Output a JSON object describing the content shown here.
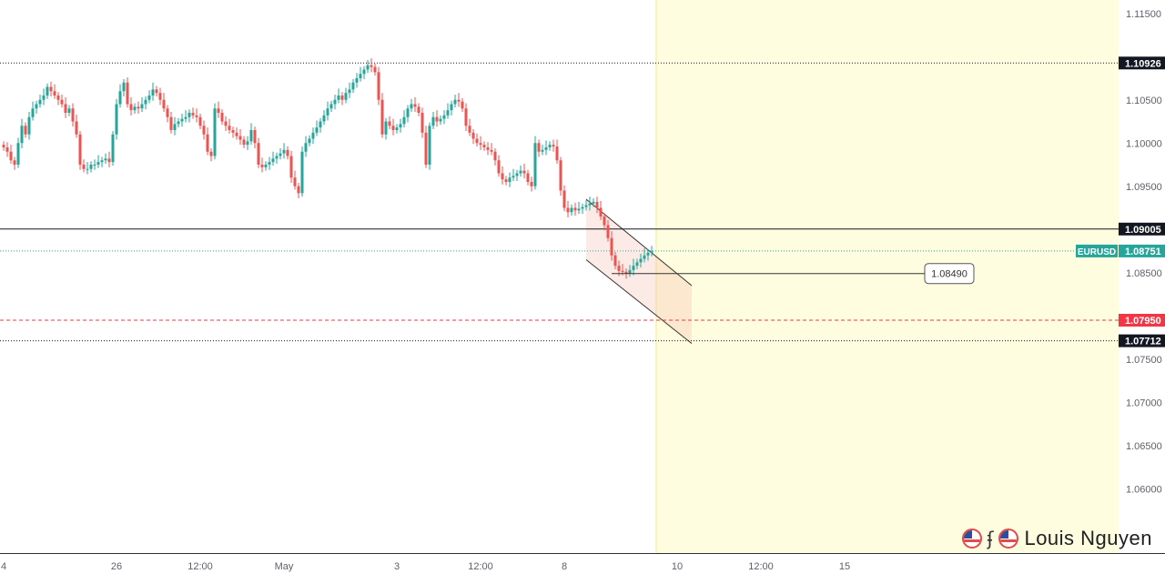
{
  "chart_data": {
    "type": "candlestick",
    "symbol": "EURUSD",
    "ylim": [
      1.0575,
      1.1155
    ],
    "y_ticks": [
      "1.11500",
      "1.10500",
      "1.10000",
      "1.09500",
      "1.08500",
      "1.07500",
      "1.07000",
      "1.06500",
      "1.06000"
    ],
    "x_ticks": [
      {
        "label": "4",
        "bar": 0
      },
      {
        "label": "26",
        "bar": 31
      },
      {
        "label": "12:00",
        "bar": 54
      },
      {
        "label": "May",
        "bar": 77
      },
      {
        "label": "3",
        "bar": 108
      },
      {
        "label": "12:00",
        "bar": 131
      },
      {
        "label": "8",
        "bar": 154
      },
      {
        "label": "10",
        "bar": 185
      },
      {
        "label": "12:00",
        "bar": 208
      },
      {
        "label": "15",
        "bar": 231
      }
    ],
    "last_price": {
      "symbol": "EURUSD",
      "value": "1.08751",
      "price": 1.08751
    },
    "levels": [
      {
        "value": "1.10926",
        "price": 1.10926,
        "style": "dotted",
        "color": "#131722"
      },
      {
        "value": "1.09005",
        "price": 1.09005,
        "style": "solid",
        "color": "#131722"
      },
      {
        "value": "1.07950",
        "price": 1.0795,
        "style": "dashed",
        "color": "#f23645"
      },
      {
        "value": "1.07712",
        "price": 1.07712,
        "style": "dotted",
        "color": "#131722"
      }
    ],
    "annotation": {
      "text": "1.08490",
      "price": 1.0849
    },
    "colors": {
      "up": "#26a69a",
      "down": "#ef5350",
      "level_red": "#f23645",
      "highlight": "#fffde0",
      "highlight_line": "#f3ee8a"
    },
    "closes": [
      1.0995,
      1.099,
      1.098,
      1.0975,
      1.1,
      1.102,
      1.101,
      1.103,
      1.104,
      1.1045,
      1.105,
      1.1055,
      1.1065,
      1.106,
      1.1055,
      1.105,
      1.1045,
      1.1035,
      1.104,
      1.1025,
      1.101,
      1.0975,
      1.097,
      1.097,
      1.0975,
      1.0975,
      1.0978,
      1.098,
      1.0982,
      1.0978,
      1.101,
      1.1045,
      1.106,
      1.107,
      1.1045,
      1.1038,
      1.1042,
      1.104,
      1.1045,
      1.105,
      1.1055,
      1.1062,
      1.1058,
      1.105,
      1.104,
      1.103,
      1.1015,
      1.1022,
      1.1025,
      1.1028,
      1.103,
      1.1035,
      1.1032,
      1.103,
      1.102,
      1.101,
      1.099,
      1.0985,
      1.104,
      1.1035,
      1.1025,
      1.102,
      1.1015,
      1.1012,
      1.1008,
      1.1004,
      1.0998,
      1.1002,
      1.1015,
      1.1,
      1.0975,
      1.0972,
      1.0975,
      1.0978,
      1.0982,
      1.0985,
      1.0988,
      1.0992,
      1.0985,
      1.096,
      1.095,
      1.0942,
      1.099,
      1.1,
      1.1005,
      1.1012,
      1.1018,
      1.1025,
      1.1032,
      1.104,
      1.1045,
      1.105,
      1.1055,
      1.105,
      1.1058,
      1.1062,
      1.107,
      1.1075,
      1.108,
      1.1085,
      1.109,
      1.1088,
      1.1082,
      1.105,
      1.101,
      1.1025,
      1.102,
      1.1015,
      1.1018,
      1.1022,
      1.103,
      1.104,
      1.1045,
      1.1042,
      1.1035,
      1.1012,
      1.0975,
      1.102,
      1.103,
      1.1025,
      1.1028,
      1.1032,
      1.1038,
      1.1045,
      1.105,
      1.1048,
      1.104,
      1.102,
      1.1012,
      1.1005,
      1.1,
      1.0998,
      1.0995,
      1.0992,
      1.099,
      1.098,
      1.0965,
      1.0958,
      1.0955,
      1.096,
      1.0962,
      1.0965,
      1.0968,
      1.0965,
      1.0955,
      1.095,
      1.1,
      1.099,
      1.0992,
      1.0995,
      1.0998,
      1.0996,
      1.098,
      1.0945,
      1.0925,
      1.092,
      1.0925,
      1.0922,
      1.0924,
      1.0926,
      1.0928,
      1.093,
      1.0932,
      1.0925,
      1.0915,
      1.0905,
      1.089,
      1.087,
      1.0858,
      1.0852,
      1.0851,
      1.0849,
      1.0853,
      1.0858,
      1.0862,
      1.0866,
      1.087,
      1.0873,
      1.0875
    ]
  },
  "watermark": {
    "name": "Louis Nguyen"
  }
}
